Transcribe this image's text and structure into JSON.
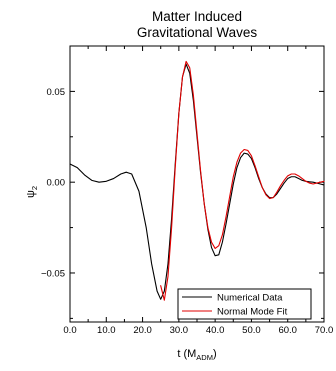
{
  "chart_data": {
    "type": "line",
    "title_lines": [
      "Matter Induced",
      "Gravitational Waves"
    ],
    "xlabel": "t (M",
    "xlabel_sub": "ADM",
    "xlabel_close": ")",
    "ylabel": "ψ",
    "ylabel_sub": "2",
    "xlim": [
      0,
      70
    ],
    "ylim": [
      -0.077,
      0.075
    ],
    "x_ticks": [
      0,
      10,
      20,
      30,
      40,
      50,
      60,
      70
    ],
    "x_tick_labels": [
      "0.0",
      "10.0",
      "20.0",
      "30.0",
      "40.0",
      "50.0",
      "60.0",
      "70.0"
    ],
    "y_ticks": [
      -0.05,
      0.0,
      0.05
    ],
    "y_tick_labels": [
      "−0.05",
      "0.00",
      "0.05"
    ],
    "grid": false,
    "legend_position": "bottom-right",
    "series": [
      {
        "name": "Numerical Data",
        "color": "#000000",
        "x": [
          0,
          2,
          4,
          6,
          8,
          10,
          12,
          14,
          15.5,
          17,
          19,
          21,
          22.5,
          24,
          25,
          26,
          27,
          28,
          29,
          30,
          31,
          32,
          33,
          34,
          35,
          36,
          37,
          38,
          39,
          40,
          41,
          42,
          43,
          44,
          45,
          46,
          47,
          48,
          49,
          50,
          51,
          52,
          53,
          54,
          55,
          56,
          57,
          58,
          59,
          60,
          61,
          62,
          63,
          64,
          65,
          66,
          67,
          68,
          69,
          70
        ],
        "y": [
          0.01,
          0.008,
          0.004,
          0.001,
          0.0,
          0.0005,
          0.002,
          0.0045,
          0.0055,
          0.0045,
          -0.005,
          -0.025,
          -0.045,
          -0.06,
          -0.0645,
          -0.06,
          -0.045,
          -0.02,
          0.01,
          0.038,
          0.058,
          0.065,
          0.06,
          0.045,
          0.025,
          0.005,
          -0.012,
          -0.026,
          -0.036,
          -0.0405,
          -0.04,
          -0.033,
          -0.023,
          -0.012,
          -0.001,
          0.008,
          0.0135,
          0.016,
          0.0155,
          0.013,
          0.008,
          0.002,
          -0.003,
          -0.0065,
          -0.0085,
          -0.0085,
          -0.0065,
          -0.0035,
          -0.0005,
          0.002,
          0.003,
          0.003,
          0.002,
          0.001,
          0.0005,
          0.0002,
          0.0,
          -0.0005,
          -0.001,
          -0.0015
        ]
      },
      {
        "name": "Normal Mode Fit",
        "color": "#e00000",
        "x": [
          25,
          26,
          27,
          28,
          29,
          30,
          31,
          32,
          33,
          34,
          35,
          36,
          37,
          38,
          39,
          40,
          41,
          42,
          43,
          44,
          45,
          46,
          47,
          48,
          49,
          50,
          51,
          52,
          53,
          54,
          55,
          56,
          57,
          58,
          59,
          60,
          61,
          62,
          63,
          64,
          65,
          66,
          67,
          68,
          69,
          70
        ],
        "y": [
          -0.057,
          -0.065,
          -0.052,
          -0.025,
          0.008,
          0.038,
          0.058,
          0.0665,
          0.063,
          0.048,
          0.027,
          0.006,
          -0.012,
          -0.025,
          -0.033,
          -0.0365,
          -0.035,
          -0.029,
          -0.019,
          -0.008,
          0.003,
          0.011,
          0.016,
          0.018,
          0.0175,
          0.0145,
          0.009,
          0.003,
          -0.003,
          -0.007,
          -0.009,
          -0.0085,
          -0.0055,
          -0.002,
          0.001,
          0.0035,
          0.0045,
          0.0045,
          0.0035,
          0.002,
          0.0005,
          -0.0005,
          -0.001,
          -0.0005,
          0.0,
          0.0005
        ]
      }
    ]
  }
}
